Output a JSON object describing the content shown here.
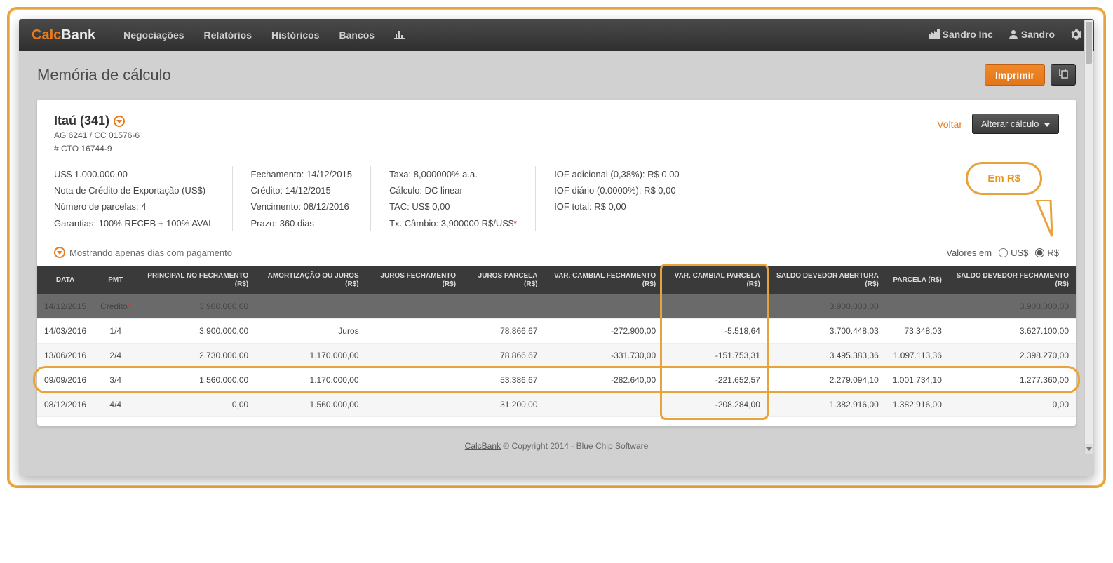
{
  "brand": {
    "part1": "Calc",
    "part2": "Bank"
  },
  "nav": {
    "negociacoes": "Negociações",
    "relatorios": "Relatórios",
    "historicos": "Históricos",
    "bancos": "Bancos"
  },
  "user": {
    "company": "Sandro Inc",
    "name": "Sandro"
  },
  "page": {
    "title": "Memória de cálculo"
  },
  "actions": {
    "print": "Imprimir",
    "voltar": "Voltar",
    "alterar": "Alterar cálculo"
  },
  "bank": {
    "title": "Itaú (341)",
    "line1": "AG 6241 / CC 01576-6",
    "line2": "# CTO 16744-9"
  },
  "summary": {
    "col1": {
      "a": "US$ 1.000.000,00",
      "b": "Nota de Crédito de Exportação (US$)",
      "c": "Número de parcelas: 4",
      "d": "Garantias: 100% RECEB + 100% AVAL"
    },
    "col2": {
      "a": "Fechamento: 14/12/2015",
      "b": "Crédito: 14/12/2015",
      "c": "Vencimento: 08/12/2016",
      "d": "Prazo: 360 dias"
    },
    "col3": {
      "a": "Taxa: 8,000000% a.a.",
      "b": "Cálculo: DC linear",
      "c": "TAC: US$ 0,00",
      "d": "Tx. Câmbio: 3,900000 R$/US$"
    },
    "col4": {
      "a": "IOF adicional (0,38%): R$ 0,00",
      "b": "IOF diário (0.0000%): R$ 0,00",
      "c": "IOF total: R$ 0,00"
    }
  },
  "callout": {
    "text": "Em R$"
  },
  "filter": {
    "left": "Mostrando apenas dias com pagamento",
    "label": "Valores em",
    "opt_usd": "US$",
    "opt_brl": "R$",
    "selected": "brl"
  },
  "table": {
    "headers": {
      "data": "DATA",
      "pmt": "PMT",
      "principal": "PRINCIPAL NO FECHAMENTO (R$)",
      "amort": "AMORTIZAÇÃO OU JUROS (R$)",
      "juros_fech": "JUROS FECHAMENTO (R$)",
      "juros_parc": "JUROS PARCELA (R$)",
      "varc_fech": "VAR. CAMBIAL FECHAMENTO (R$)",
      "varc_parc": "VAR. CAMBIAL PARCELA (R$)",
      "saldo_ab": "SALDO DEVEDOR ABERTURA (R$)",
      "parcela": "PARCELA (R$)",
      "saldo_fech": "SALDO DEVEDOR FECHAMENTO (R$)"
    },
    "rows": [
      {
        "kind": "credit",
        "data": "14/12/2015",
        "pmt": "Crédito",
        "pmt_star": true,
        "principal": "3.900.000,00",
        "amort": "",
        "juros_fech": "",
        "juros_parc": "",
        "varc_fech": "",
        "varc_parc": "",
        "saldo_ab": "3.900.000,00",
        "parcela": "",
        "saldo_fech": "3.900.000,00"
      },
      {
        "kind": "even",
        "data": "14/03/2016",
        "pmt": "1/4",
        "principal": "3.900.000,00",
        "amort": "Juros",
        "juros_fech": "",
        "juros_parc": "78.866,67",
        "varc_fech": "-272.900,00",
        "varc_parc": "-5.518,64",
        "saldo_ab": "3.700.448,03",
        "parcela": "73.348,03",
        "saldo_fech": "3.627.100,00"
      },
      {
        "kind": "odd",
        "data": "13/06/2016",
        "pmt": "2/4",
        "principal": "2.730.000,00",
        "amort": "1.170.000,00",
        "juros_fech": "",
        "juros_parc": "78.866,67",
        "varc_fech": "-331.730,00",
        "varc_parc": "-151.753,31",
        "saldo_ab": "3.495.383,36",
        "parcela": "1.097.113,36",
        "saldo_fech": "2.398.270,00"
      },
      {
        "kind": "even",
        "data": "09/09/2016",
        "pmt": "3/4",
        "principal": "1.560.000,00",
        "amort": "1.170.000,00",
        "juros_fech": "",
        "juros_parc": "53.386,67",
        "varc_fech": "-282.640,00",
        "varc_parc": "-221.652,57",
        "saldo_ab": "2.279.094,10",
        "parcela": "1.001.734,10",
        "saldo_fech": "1.277.360,00"
      },
      {
        "kind": "odd",
        "data": "08/12/2016",
        "pmt": "4/4",
        "principal": "0,00",
        "amort": "1.560.000,00",
        "juros_fech": "",
        "juros_parc": "31.200,00",
        "varc_fech": "",
        "varc_parc": "-208.284,00",
        "saldo_ab": "1.382.916,00",
        "parcela": "1.382.916,00",
        "saldo_fech": "0,00"
      }
    ],
    "highlight_row_index": 3,
    "highlight_col_index": 7
  },
  "footer": {
    "brand": "CalcBank",
    "rest": " © Copyright 2014 - Blue Chip Software"
  },
  "colors": {
    "accent": "#e87b1c",
    "frame": "#e8a33d",
    "navbar_top": "#4a4a4a",
    "navbar_bottom": "#2f2f2f",
    "page_bg": "#d1d1d1",
    "table_header_bg": "#3a3a3a",
    "credit_row_bg": "#6a6a6a"
  }
}
